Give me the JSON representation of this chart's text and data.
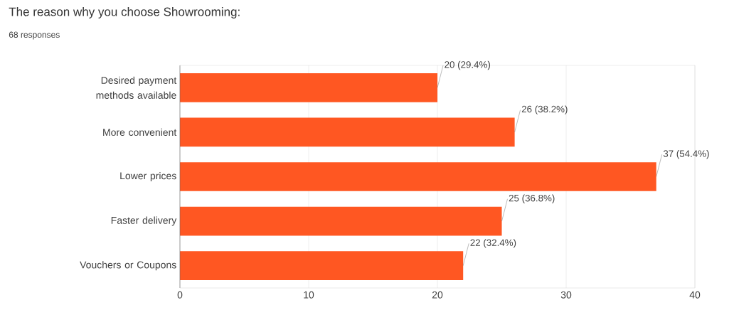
{
  "chart_data": {
    "type": "bar",
    "orientation": "horizontal",
    "title": "The reason why you choose Showrooming:",
    "subtitle": "68 responses",
    "categories": [
      "Desired payment methods available",
      "More convenient",
      "Lower prices",
      "Faster delivery",
      "Vouchers or Coupons"
    ],
    "values": [
      20,
      26,
      37,
      25,
      22
    ],
    "value_labels": [
      "20 (29.4%)",
      "26 (38.2%)",
      "37 (54.4%)",
      "25 (36.8%)",
      "22 (32.4%)"
    ],
    "color": "#ff5722",
    "xlim": [
      0,
      40
    ],
    "xticks": [
      0,
      10,
      20,
      30,
      40
    ],
    "grid": "x"
  }
}
